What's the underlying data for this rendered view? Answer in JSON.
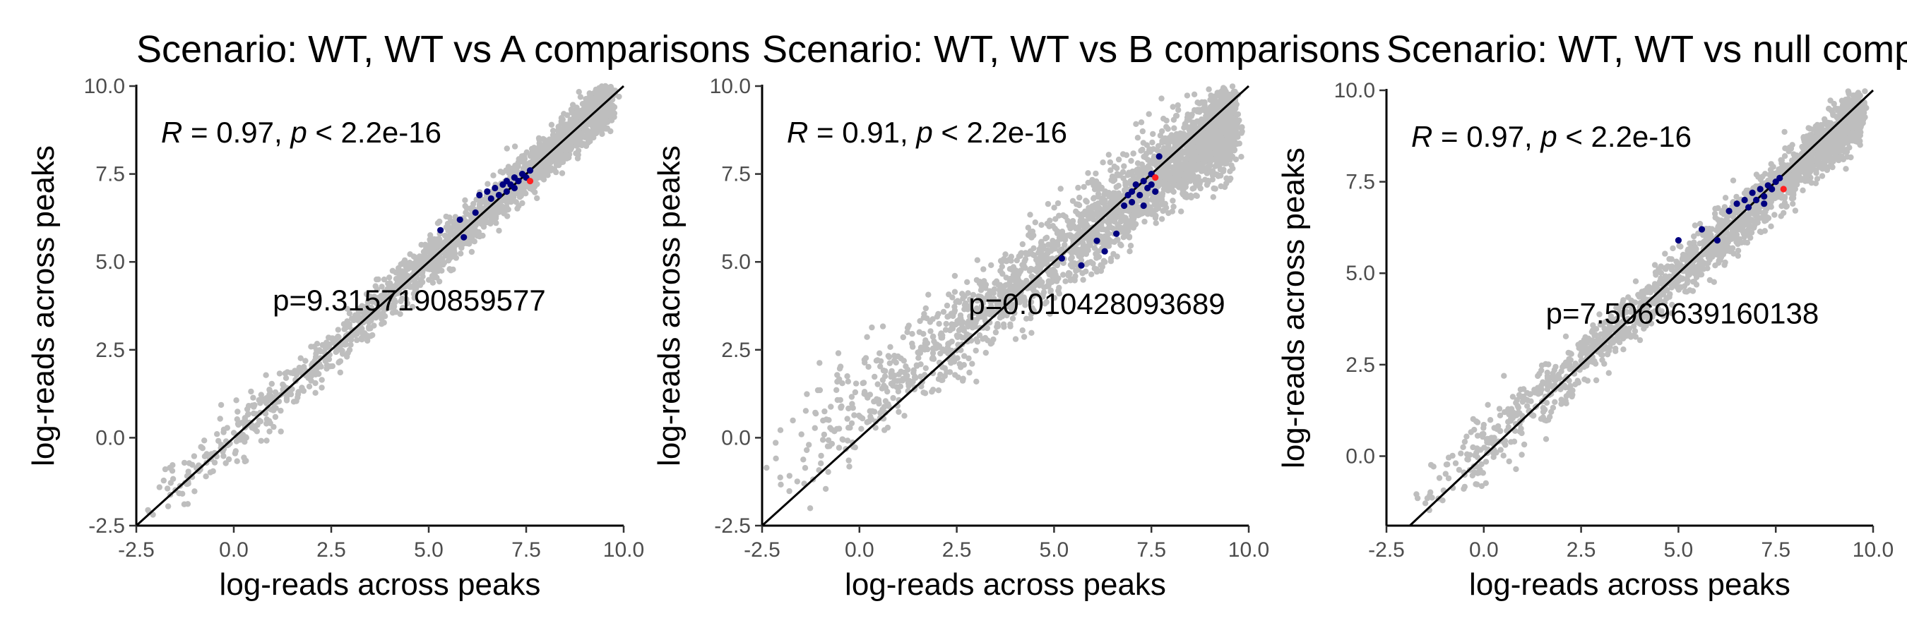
{
  "chart_data": [
    {
      "type": "scatter",
      "title": "Scenario: WT, WT vs A comparisons",
      "xlabel": "log-reads across peaks",
      "ylabel": "log-reads across peaks",
      "xlim": [
        -2.5,
        10.0
      ],
      "ylim": [
        -2.5,
        10.0
      ],
      "xticks": [
        "-2.5",
        "0.0",
        "2.5",
        "5.0",
        "7.5",
        "10.0"
      ],
      "yticks": [
        "-2.5",
        "0.0",
        "2.5",
        "5.0",
        "7.5",
        "10.0"
      ],
      "stat_r": "0.97",
      "stat_p": "2.2e-16",
      "annotation": "p=9.3157190859577",
      "annotation_pos": [
        4.5,
        3.9
      ],
      "cloud": {
        "x_min": -2.2,
        "x_max": 9.6,
        "spread": 0.32,
        "slope": 1.0,
        "intercept": 0.0,
        "color": "#bebebe",
        "n": 2200
      },
      "series": [
        {
          "name": "",
          "color": "#000080",
          "points": [
            [
              5.3,
              5.9
            ],
            [
              5.8,
              6.2
            ],
            [
              5.9,
              5.7
            ],
            [
              6.2,
              6.4
            ],
            [
              6.3,
              6.9
            ],
            [
              6.5,
              7.0
            ],
            [
              6.6,
              6.8
            ],
            [
              6.7,
              7.1
            ],
            [
              6.8,
              6.9
            ],
            [
              6.9,
              7.2
            ],
            [
              7.0,
              7.3
            ],
            [
              7.0,
              7.0
            ],
            [
              7.1,
              7.2
            ],
            [
              7.2,
              7.4
            ],
            [
              7.3,
              7.3
            ],
            [
              7.4,
              7.5
            ],
            [
              7.5,
              7.4
            ],
            [
              7.6,
              7.6
            ],
            [
              7.2,
              7.1
            ]
          ]
        },
        {
          "name": "",
          "color": "#ff2020",
          "points": [
            [
              7.6,
              7.3
            ]
          ]
        }
      ]
    },
    {
      "type": "scatter",
      "title": "Scenario: WT, WT vs B comparisons",
      "xlabel": "log-reads across peaks",
      "ylabel": "log-reads across peaks",
      "xlim": [
        -2.5,
        10.0
      ],
      "ylim": [
        -2.5,
        10.0
      ],
      "xticks": [
        "-2.5",
        "0.0",
        "2.5",
        "5.0",
        "7.5",
        "10.0"
      ],
      "yticks": [
        "-2.5",
        "0.0",
        "2.5",
        "5.0",
        "7.5",
        "10.0"
      ],
      "stat_r": "0.91",
      "stat_p": "2.2e-16",
      "annotation": "p=0.010428093689",
      "annotation_pos": [
        6.1,
        3.8
      ],
      "cloud": {
        "x_min": -2.2,
        "x_max": 9.6,
        "spread": 0.6,
        "slope": 0.85,
        "intercept": 0.9,
        "color": "#bebebe",
        "n": 2600
      },
      "series": [
        {
          "name": "",
          "color": "#000080",
          "points": [
            [
              5.2,
              5.1
            ],
            [
              5.7,
              4.9
            ],
            [
              6.1,
              5.6
            ],
            [
              6.3,
              5.3
            ],
            [
              6.6,
              5.8
            ],
            [
              6.8,
              6.6
            ],
            [
              6.9,
              6.9
            ],
            [
              7.0,
              7.0
            ],
            [
              7.0,
              6.7
            ],
            [
              7.1,
              7.2
            ],
            [
              7.2,
              6.9
            ],
            [
              7.3,
              7.3
            ],
            [
              7.3,
              6.6
            ],
            [
              7.4,
              7.1
            ],
            [
              7.5,
              7.5
            ],
            [
              7.6,
              7.0
            ],
            [
              7.7,
              8.0
            ],
            [
              7.5,
              7.2
            ]
          ]
        },
        {
          "name": "",
          "color": "#ff2020",
          "points": [
            [
              7.6,
              7.4
            ]
          ]
        }
      ]
    },
    {
      "type": "scatter",
      "title": "Scenario: WT, WT vs null comparisons",
      "xlabel": "log-reads across peaks",
      "ylabel": "log-reads across peaks",
      "xlim": [
        -2.5,
        10.0
      ],
      "ylim": [
        -1.9,
        10.0
      ],
      "xticks": [
        "-2.5",
        "0.0",
        "2.5",
        "5.0",
        "7.5",
        "10.0"
      ],
      "yticks": [
        "0.0",
        "2.5",
        "5.0",
        "7.5",
        "10.0"
      ],
      "stat_r": "0.97",
      "stat_p": "2.2e-16",
      "annotation": "p=7.5069639160138",
      "annotation_pos": [
        5.1,
        3.9
      ],
      "cloud": {
        "x_min": -1.8,
        "x_max": 9.6,
        "spread": 0.35,
        "slope": 0.95,
        "intercept": 0.2,
        "color": "#bebebe",
        "n": 2200
      },
      "series": [
        {
          "name": "",
          "color": "#000080",
          "points": [
            [
              5.0,
              5.9
            ],
            [
              5.6,
              6.2
            ],
            [
              6.0,
              5.9
            ],
            [
              6.3,
              6.7
            ],
            [
              6.5,
              6.9
            ],
            [
              6.7,
              7.0
            ],
            [
              6.8,
              6.8
            ],
            [
              6.9,
              7.2
            ],
            [
              7.0,
              7.0
            ],
            [
              7.1,
              7.3
            ],
            [
              7.2,
              7.1
            ],
            [
              7.3,
              7.4
            ],
            [
              7.4,
              7.3
            ],
            [
              7.5,
              7.5
            ],
            [
              7.6,
              7.6
            ],
            [
              7.2,
              6.9
            ]
          ]
        },
        {
          "name": "",
          "color": "#ff2020",
          "points": [
            [
              7.7,
              7.3
            ]
          ]
        }
      ]
    }
  ]
}
